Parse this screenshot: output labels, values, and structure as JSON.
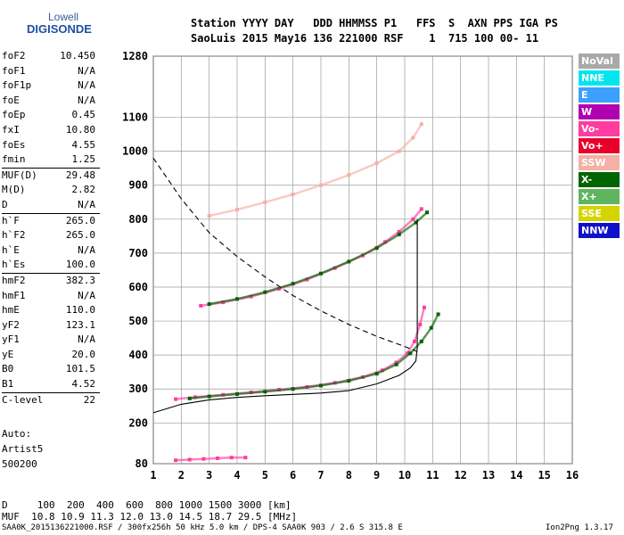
{
  "logo": {
    "line1": "Lowell",
    "line2": "DIGISONDE"
  },
  "header": {
    "labels_line": "Station YYYY DAY   DDD HHMMSS P1   FFS  S  AXN PPS IGA PS",
    "values_line": "SaoLuis 2015 May16 136 221000 RSF    1  715 100 00- 11"
  },
  "params": [
    {
      "name": "foF2",
      "value": "10.450"
    },
    {
      "name": "foF1",
      "value": "N/A"
    },
    {
      "name": "foF1p",
      "value": "N/A"
    },
    {
      "name": "foE",
      "value": "N/A"
    },
    {
      "name": "foEp",
      "value": "0.45"
    },
    {
      "name": "fxI",
      "value": "10.80"
    },
    {
      "name": "foEs",
      "value": "4.55"
    },
    {
      "name": "fmin",
      "value": "1.25"
    },
    {
      "name": "MUF(D)",
      "value": "29.48",
      "sep": true
    },
    {
      "name": "M(D)",
      "value": "2.82"
    },
    {
      "name": "D",
      "value": "N/A"
    },
    {
      "name": "h`F",
      "value": "265.0",
      "sep": true
    },
    {
      "name": "h`F2",
      "value": "265.0"
    },
    {
      "name": "h`E",
      "value": "N/A"
    },
    {
      "name": "h`Es",
      "value": "100.0"
    },
    {
      "name": "hmF2",
      "value": "382.3",
      "sep": true
    },
    {
      "name": "hmF1",
      "value": "N/A"
    },
    {
      "name": "hmE",
      "value": "110.0"
    },
    {
      "name": "yF2",
      "value": "123.1"
    },
    {
      "name": "yF1",
      "value": "N/A"
    },
    {
      "name": "yE",
      "value": "20.0"
    },
    {
      "name": "B0",
      "value": "101.5"
    },
    {
      "name": "B1",
      "value": "4.52"
    },
    {
      "name": "C-level",
      "value": "22",
      "sep": true
    }
  ],
  "auto": {
    "line1": "Auto:",
    "line2": "Artist5",
    "line3": "500200"
  },
  "legend": [
    {
      "label": "NoVal",
      "color": "#a9a9a9"
    },
    {
      "label": "NNE",
      "color": "#00e5ee"
    },
    {
      "label": "E",
      "color": "#3ca0ff"
    },
    {
      "label": "W",
      "color": "#b000b0"
    },
    {
      "label": "Vo-",
      "color": "#ff3ca0"
    },
    {
      "label": "Vo+",
      "color": "#e8002a"
    },
    {
      "label": "SSW",
      "color": "#f4b0a4"
    },
    {
      "label": "X-",
      "color": "#006400"
    },
    {
      "label": "X+",
      "color": "#5fb55f"
    },
    {
      "label": "SSE",
      "color": "#d4d400"
    },
    {
      "label": "NNW",
      "color": "#1010c8"
    }
  ],
  "muf_table": {
    "d_line": "D     100  200  400  600  800 1000 1500 3000 [km]",
    "muf_line": "MUF  10.8 10.9 11.3 12.0 13.0 14.5 18.7 29.5 [MHz]"
  },
  "footer": {
    "left": "SAA0K_2015136221000.RSF / 300fx256h 50 kHz 5.0 km / DPS-4 SAA0K 903 / 2.6 S 315.8 E",
    "right": "Ion2Png 1.3.17"
  },
  "chart_data": {
    "type": "scatter",
    "title": "",
    "xlabel": "",
    "ylabel": "",
    "xlim": [
      1,
      16
    ],
    "ylim": [
      80,
      1280
    ],
    "x_ticks": [
      1,
      2,
      3,
      4,
      5,
      6,
      7,
      8,
      9,
      10,
      11,
      12,
      13,
      14,
      15,
      16
    ],
    "y_ticks": [
      80,
      200,
      300,
      400,
      500,
      600,
      700,
      800,
      900,
      1000,
      1100,
      1280
    ],
    "grid": true,
    "legend_placement": "right",
    "series": [
      {
        "name": "Vo-",
        "values": [
          [
            1.8,
            270
          ],
          [
            2.5,
            276
          ],
          [
            3.5,
            283
          ],
          [
            4.5,
            290
          ],
          [
            5.5,
            298
          ],
          [
            6.5,
            306
          ],
          [
            7.5,
            318
          ],
          [
            8.5,
            335
          ],
          [
            9.2,
            355
          ],
          [
            9.7,
            378
          ],
          [
            10.1,
            405
          ],
          [
            10.35,
            440
          ],
          [
            10.55,
            490
          ],
          [
            10.7,
            540
          ]
        ]
      },
      {
        "name": "X-",
        "values": [
          [
            2.3,
            272
          ],
          [
            3,
            278
          ],
          [
            4,
            285
          ],
          [
            5,
            292
          ],
          [
            6,
            300
          ],
          [
            7,
            310
          ],
          [
            8,
            324
          ],
          [
            9,
            345
          ],
          [
            9.7,
            372
          ],
          [
            10.2,
            405
          ],
          [
            10.6,
            440
          ],
          [
            10.95,
            480
          ],
          [
            11.2,
            520
          ]
        ]
      },
      {
        "name": "Vo-",
        "values": [
          [
            2.7,
            545
          ],
          [
            3.5,
            555
          ],
          [
            4.5,
            572
          ],
          [
            5.5,
            595
          ],
          [
            6.5,
            622
          ],
          [
            7.5,
            656
          ],
          [
            8.5,
            693
          ],
          [
            9.3,
            733
          ],
          [
            9.8,
            763
          ],
          [
            10.3,
            800
          ],
          [
            10.6,
            830
          ]
        ]
      },
      {
        "name": "X-",
        "values": [
          [
            3,
            550
          ],
          [
            4,
            565
          ],
          [
            5,
            585
          ],
          [
            6,
            610
          ],
          [
            7,
            640
          ],
          [
            8,
            675
          ],
          [
            9,
            715
          ],
          [
            9.8,
            755
          ],
          [
            10.4,
            790
          ],
          [
            10.8,
            820
          ]
        ]
      },
      {
        "name": "SSW",
        "values": [
          [
            3,
            810
          ],
          [
            4,
            828
          ],
          [
            5,
            850
          ],
          [
            6,
            873
          ],
          [
            7,
            900
          ],
          [
            8,
            930
          ],
          [
            9,
            965
          ],
          [
            9.8,
            1000
          ],
          [
            10.3,
            1040
          ],
          [
            10.6,
            1080
          ]
        ]
      },
      {
        "name": "Vo-",
        "values": [
          [
            1.8,
            90
          ],
          [
            2.3,
            92
          ],
          [
            2.8,
            94
          ],
          [
            3.3,
            96
          ],
          [
            3.8,
            98
          ],
          [
            4.3,
            98
          ]
        ]
      }
    ],
    "profile": [
      [
        1,
        230
      ],
      [
        2,
        255
      ],
      [
        3,
        268
      ],
      [
        4,
        275
      ],
      [
        5,
        280
      ],
      [
        6,
        284
      ],
      [
        7,
        288
      ],
      [
        8,
        295
      ],
      [
        9,
        315
      ],
      [
        9.8,
        340
      ],
      [
        10.2,
        362
      ],
      [
        10.4,
        382.3
      ]
    ],
    "profile_upper": [
      [
        10.4,
        382.3
      ],
      [
        10.45,
        420
      ],
      [
        10.45,
        500
      ],
      [
        10.45,
        600
      ],
      [
        10.45,
        700
      ],
      [
        10.45,
        800
      ]
    ],
    "muf_curve": [
      [
        1,
        980
      ],
      [
        1.5,
        920
      ],
      [
        2,
        860
      ],
      [
        3,
        760
      ],
      [
        4,
        690
      ],
      [
        5,
        630
      ],
      [
        6,
        575
      ],
      [
        7,
        530
      ],
      [
        8,
        490
      ],
      [
        9,
        455
      ],
      [
        10,
        425
      ],
      [
        10.45,
        410
      ]
    ]
  }
}
